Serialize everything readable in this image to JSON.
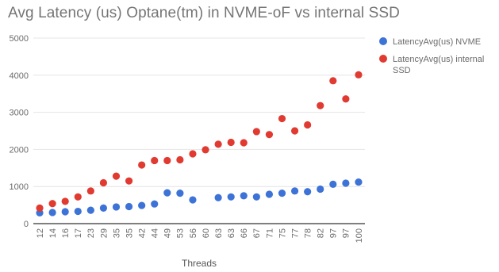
{
  "chart_data": {
    "type": "scatter",
    "title": "Avg Latency (us) Optane(tm) in NVME-oF vs internal SSD",
    "xlabel": "Threads",
    "ylabel": "",
    "ylim": [
      0,
      5000
    ],
    "yticks": [
      0,
      1000,
      2000,
      3000,
      4000,
      5000
    ],
    "grid": true,
    "legend_position": "right",
    "categories": [
      "12",
      "14",
      "16",
      "17",
      "23",
      "29",
      "35",
      "35",
      "42",
      "44",
      "49",
      "53",
      "56",
      "60",
      "63",
      "63",
      "66",
      "67",
      "71",
      "75",
      "77",
      "78",
      "82",
      "97",
      "97",
      "100"
    ],
    "series": [
      {
        "name": "LatencyAvg(us) NVME",
        "color": "#3d73d6",
        "values": [
          290,
          300,
          320,
          330,
          360,
          420,
          450,
          460,
          490,
          530,
          830,
          820,
          640,
          null,
          700,
          720,
          750,
          720,
          790,
          820,
          880,
          860,
          930,
          1060,
          1090,
          1120
        ]
      },
      {
        "name": "LatencyAvg(us) internal SSD",
        "color": "#e03a31",
        "values": [
          420,
          540,
          600,
          720,
          880,
          1100,
          1280,
          1150,
          1580,
          1700,
          1700,
          1720,
          1880,
          1990,
          2140,
          2190,
          2180,
          2480,
          2400,
          2830,
          2500,
          2660,
          3180,
          3850,
          3360,
          4010
        ]
      }
    ]
  }
}
